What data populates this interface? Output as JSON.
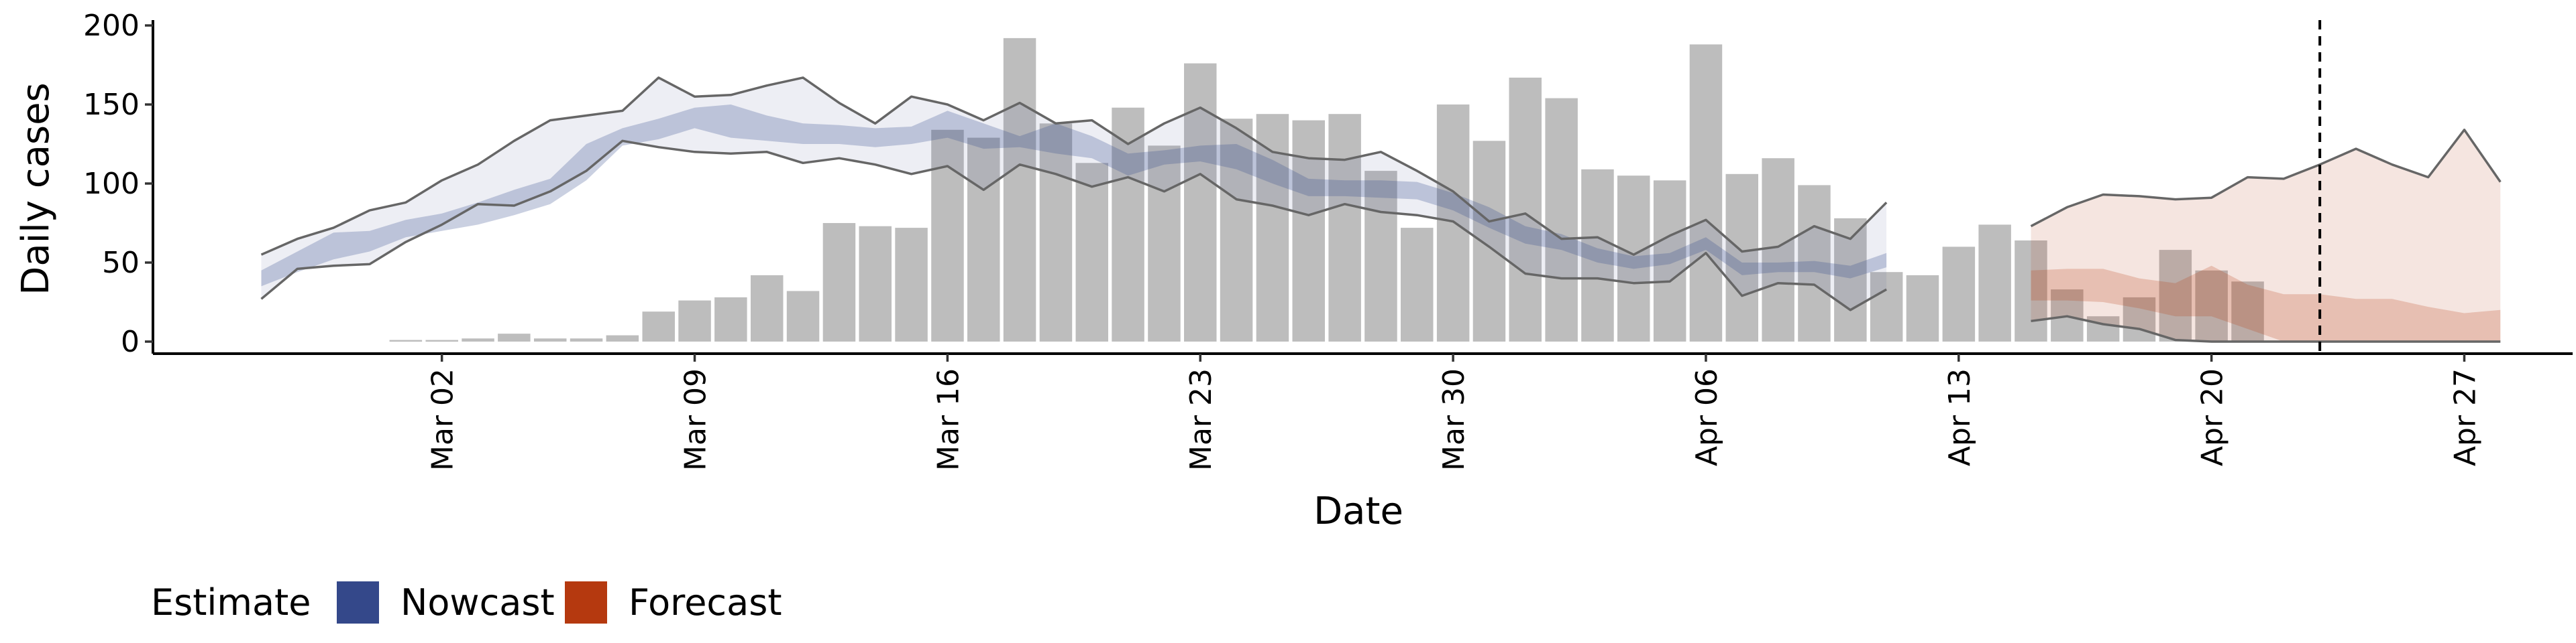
{
  "chart_data": {
    "type": "bar",
    "xlabel": "Date",
    "ylabel": "Daily cases",
    "ylim": [
      0,
      200
    ],
    "yticks": [
      0,
      50,
      100,
      150,
      200
    ],
    "xlim": [
      "2020-02-23",
      "2020-04-30"
    ],
    "xticks": [
      {
        "date": "2020-03-02",
        "label": "Mar 02"
      },
      {
        "date": "2020-03-09",
        "label": "Mar 09"
      },
      {
        "date": "2020-03-16",
        "label": "Mar 16"
      },
      {
        "date": "2020-03-23",
        "label": "Mar 23"
      },
      {
        "date": "2020-03-30",
        "label": "Mar 30"
      },
      {
        "date": "2020-04-06",
        "label": "Apr 06"
      },
      {
        "date": "2020-04-13",
        "label": "Apr 13"
      },
      {
        "date": "2020-04-20",
        "label": "Apr 20"
      },
      {
        "date": "2020-04-27",
        "label": "Apr 27"
      }
    ],
    "bars_start": "2020-03-01",
    "bars": [
      1,
      1,
      2,
      5,
      2,
      2,
      4,
      19,
      26,
      28,
      42,
      32,
      75,
      73,
      72,
      134,
      129,
      192,
      138,
      113,
      148,
      124,
      176,
      141,
      144,
      140,
      144,
      108,
      72,
      150,
      127,
      167,
      154,
      109,
      105,
      102,
      188,
      106,
      116,
      99,
      78,
      44,
      42,
      60,
      74,
      64,
      33,
      16,
      28,
      58,
      45,
      38
    ],
    "vline_date": "2020-04-23",
    "legend": {
      "title": "Estimate",
      "position": "bottom-left",
      "entries": [
        {
          "label": "Nowcast",
          "color": "#34488a"
        },
        {
          "label": "Forecast",
          "color": "#b5390f"
        }
      ]
    },
    "nowcast": {
      "start": "2020-02-26",
      "outer_upper": [
        55,
        65,
        72,
        83,
        88,
        102,
        112,
        127,
        140,
        143,
        146,
        167,
        155,
        156,
        162,
        167,
        151,
        138,
        155,
        150,
        140,
        151,
        138,
        140,
        125,
        138,
        148,
        135,
        120,
        116,
        115,
        120,
        108,
        95,
        76,
        81,
        65,
        66,
        55,
        67,
        77,
        57,
        60,
        73,
        65,
        88
      ],
      "outer_lower": [
        27,
        46,
        48,
        49,
        63,
        74,
        87,
        86,
        95,
        108,
        127,
        123,
        120,
        119,
        120,
        113,
        116,
        112,
        106,
        111,
        96,
        112,
        106,
        98,
        104,
        95,
        106,
        90,
        86,
        80,
        87,
        82,
        80,
        76,
        60,
        43,
        40,
        40,
        37,
        38,
        56,
        29,
        37,
        36,
        20,
        33
      ],
      "inner_upper": [
        45,
        57,
        69,
        70,
        77,
        81,
        88,
        96,
        103,
        125,
        135,
        141,
        148,
        150,
        143,
        138,
        137,
        135,
        136,
        146,
        138,
        130,
        138,
        130,
        119,
        121,
        124,
        125,
        115,
        103,
        102,
        102,
        101,
        94,
        85,
        73,
        68,
        59,
        54,
        56,
        66,
        50,
        50,
        51,
        48,
        56
      ],
      "inner_lower": [
        35,
        44,
        52,
        57,
        66,
        70,
        74,
        80,
        87,
        102,
        124,
        128,
        135,
        129,
        127,
        125,
        125,
        123,
        125,
        129,
        122,
        123,
        119,
        116,
        105,
        112,
        114,
        109,
        100,
        92,
        92,
        91,
        90,
        83,
        72,
        62,
        58,
        50,
        46,
        49,
        58,
        42,
        44,
        44,
        40,
        47
      ]
    },
    "forecast": {
      "start": "2020-04-15",
      "outer_upper": [
        73,
        85,
        93,
        92,
        90,
        91,
        104,
        103,
        112,
        122,
        112,
        104,
        134,
        101
      ],
      "outer_lower": [
        13,
        16,
        11,
        8,
        1,
        0,
        0,
        0,
        0,
        0,
        0,
        0,
        0,
        0
      ],
      "inner_upper": [
        45,
        46,
        46,
        40,
        37,
        48,
        36,
        30,
        30,
        27,
        27,
        22,
        18,
        20
      ],
      "inner_lower": [
        26,
        26,
        25,
        21,
        16,
        16,
        8,
        0,
        0,
        0,
        0,
        0,
        0,
        0
      ]
    }
  }
}
